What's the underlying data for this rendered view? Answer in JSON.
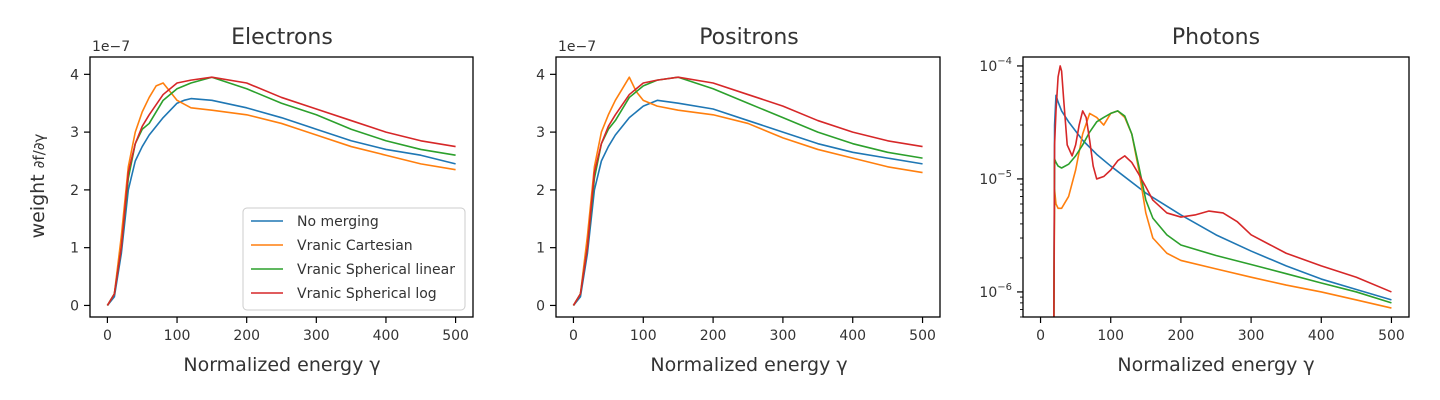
{
  "colors": {
    "no_merging": "#1f77b4",
    "vranic_cartesian": "#ff7f0e",
    "vranic_spherical_linear": "#2ca02c",
    "vranic_spherical_log": "#d62728"
  },
  "shared": {
    "xlabel": "Normalized energy γ",
    "ylabel_prefix": "weight",
    "ylabel_math": "∂f/∂γ"
  },
  "chart_data": [
    {
      "type": "line",
      "title": "Electrons",
      "xlabel": "Normalized energy γ",
      "ylabel": "weight ∂f/∂γ",
      "yscale": "linear",
      "y_multiplier": "1e−7",
      "xlim": [
        -25,
        525
      ],
      "ylim": [
        -0.2,
        4.3
      ],
      "xticks": [
        0,
        100,
        200,
        300,
        400,
        500
      ],
      "yticks": [
        0,
        1,
        2,
        3,
        4
      ],
      "legend": {
        "placement": "lower-right",
        "entries": [
          "No merging",
          "Vranic Cartesian",
          "Vranic Spherical linear",
          "Vranic Spherical log"
        ]
      },
      "series": [
        {
          "name": "No merging",
          "x": [
            0,
            10,
            20,
            30,
            40,
            50,
            60,
            80,
            100,
            110,
            120,
            150,
            200,
            250,
            300,
            350,
            400,
            450,
            500
          ],
          "y": [
            0,
            0.15,
            0.9,
            2.0,
            2.5,
            2.75,
            2.95,
            3.25,
            3.5,
            3.55,
            3.58,
            3.55,
            3.42,
            3.25,
            3.05,
            2.85,
            2.7,
            2.6,
            2.45
          ]
        },
        {
          "name": "Vranic Cartesian",
          "x": [
            0,
            10,
            20,
            30,
            40,
            50,
            60,
            70,
            80,
            90,
            100,
            120,
            150,
            200,
            250,
            300,
            350,
            400,
            450,
            500
          ],
          "y": [
            0,
            0.2,
            1.2,
            2.4,
            3.0,
            3.35,
            3.6,
            3.8,
            3.85,
            3.7,
            3.55,
            3.42,
            3.38,
            3.3,
            3.15,
            2.95,
            2.75,
            2.6,
            2.45,
            2.35
          ]
        },
        {
          "name": "Vranic Spherical linear",
          "x": [
            0,
            10,
            20,
            30,
            40,
            50,
            60,
            80,
            100,
            120,
            150,
            200,
            250,
            300,
            350,
            400,
            450,
            500
          ],
          "y": [
            0,
            0.2,
            1.0,
            2.2,
            2.8,
            3.05,
            3.15,
            3.55,
            3.75,
            3.85,
            3.95,
            3.75,
            3.5,
            3.3,
            3.05,
            2.85,
            2.7,
            2.6
          ]
        },
        {
          "name": "Vranic Spherical log",
          "x": [
            0,
            10,
            20,
            30,
            40,
            50,
            60,
            80,
            100,
            120,
            150,
            200,
            250,
            300,
            350,
            400,
            450,
            500
          ],
          "y": [
            0,
            0.2,
            1.0,
            2.3,
            2.8,
            3.1,
            3.3,
            3.65,
            3.85,
            3.9,
            3.95,
            3.85,
            3.6,
            3.4,
            3.2,
            3.0,
            2.85,
            2.75
          ]
        }
      ]
    },
    {
      "type": "line",
      "title": "Positrons",
      "xlabel": "Normalized energy γ",
      "yscale": "linear",
      "y_multiplier": "1e−7",
      "xlim": [
        -25,
        525
      ],
      "ylim": [
        -0.2,
        4.3
      ],
      "xticks": [
        0,
        100,
        200,
        300,
        400,
        500
      ],
      "yticks": [
        0,
        1,
        2,
        3,
        4
      ],
      "series": [
        {
          "name": "No merging",
          "x": [
            0,
            10,
            20,
            30,
            40,
            50,
            60,
            80,
            100,
            110,
            120,
            150,
            200,
            250,
            300,
            350,
            400,
            450,
            500
          ],
          "y": [
            0,
            0.15,
            0.9,
            2.0,
            2.5,
            2.75,
            2.95,
            3.25,
            3.45,
            3.5,
            3.55,
            3.5,
            3.4,
            3.2,
            3.0,
            2.8,
            2.65,
            2.55,
            2.45
          ]
        },
        {
          "name": "Vranic Cartesian",
          "x": [
            0,
            10,
            20,
            30,
            40,
            50,
            60,
            70,
            80,
            90,
            100,
            120,
            150,
            200,
            250,
            300,
            350,
            400,
            450,
            500
          ],
          "y": [
            0,
            0.2,
            1.2,
            2.4,
            3.0,
            3.3,
            3.55,
            3.75,
            3.95,
            3.7,
            3.55,
            3.45,
            3.38,
            3.3,
            3.15,
            2.9,
            2.7,
            2.55,
            2.4,
            2.3
          ]
        },
        {
          "name": "Vranic Spherical linear",
          "x": [
            0,
            10,
            20,
            30,
            40,
            50,
            60,
            80,
            100,
            120,
            150,
            200,
            250,
            300,
            350,
            400,
            450,
            500
          ],
          "y": [
            0,
            0.2,
            1.0,
            2.2,
            2.8,
            3.05,
            3.2,
            3.6,
            3.8,
            3.9,
            3.95,
            3.75,
            3.5,
            3.25,
            3.0,
            2.8,
            2.65,
            2.55
          ]
        },
        {
          "name": "Vranic Spherical log",
          "x": [
            0,
            10,
            20,
            30,
            40,
            50,
            60,
            80,
            100,
            120,
            150,
            200,
            250,
            300,
            350,
            400,
            450,
            500
          ],
          "y": [
            0,
            0.2,
            1.0,
            2.3,
            2.8,
            3.1,
            3.3,
            3.65,
            3.85,
            3.9,
            3.95,
            3.85,
            3.65,
            3.45,
            3.2,
            3.0,
            2.85,
            2.75
          ]
        }
      ]
    },
    {
      "type": "line",
      "title": "Photons",
      "xlabel": "Normalized energy γ",
      "yscale": "log",
      "xlim": [
        -25,
        525
      ],
      "ylim": [
        6e-07,
        0.00012
      ],
      "xticks": [
        0,
        100,
        200,
        300,
        400,
        500
      ],
      "yticks": [
        1e-06,
        1e-05,
        0.0001
      ],
      "ytick_labels": [
        "10−6",
        "10−5",
        "10−4"
      ],
      "series": [
        {
          "name": "No merging",
          "x": [
            19,
            20,
            22,
            25,
            30,
            40,
            60,
            80,
            100,
            150,
            200,
            250,
            300,
            350,
            400,
            450,
            500
          ],
          "y": [
            6e-07,
            3e-05,
            5.5e-05,
            4.8e-05,
            4e-05,
            3.2e-05,
            2.2e-05,
            1.65e-05,
            1.3e-05,
            7.5e-06,
            4.8e-06,
            3.2e-06,
            2.3e-06,
            1.7e-06,
            1.3e-06,
            1.05e-06,
            8.5e-07
          ]
        },
        {
          "name": "Vranic Cartesian",
          "x": [
            19,
            20,
            22,
            25,
            30,
            40,
            50,
            60,
            70,
            80,
            90,
            100,
            110,
            120,
            130,
            140,
            150,
            160,
            180,
            200,
            250,
            300,
            350,
            400,
            450,
            500
          ],
          "y": [
            6e-07,
            8e-06,
            6e-06,
            5.5e-06,
            5.5e-06,
            7e-06,
            1.2e-05,
            2.5e-05,
            3.8e-05,
            3.5e-05,
            3e-05,
            3.8e-05,
            4e-05,
            3.5e-05,
            2.5e-05,
            1.2e-05,
            5e-06,
            3e-06,
            2.2e-06,
            1.9e-06,
            1.6e-06,
            1.35e-06,
            1.15e-06,
            1e-06,
            8.5e-07,
            7.2e-07
          ]
        },
        {
          "name": "Vranic Spherical linear",
          "x": [
            19,
            20,
            22,
            25,
            30,
            40,
            50,
            60,
            70,
            80,
            90,
            100,
            110,
            120,
            130,
            140,
            150,
            160,
            180,
            200,
            250,
            300,
            350,
            400,
            450,
            500
          ],
          "y": [
            6e-07,
            1.5e-05,
            1.4e-05,
            1.3e-05,
            1.25e-05,
            1.35e-05,
            1.6e-05,
            2e-05,
            2.6e-05,
            3.2e-05,
            3.5e-05,
            3.8e-05,
            4e-05,
            3.6e-05,
            2.5e-05,
            1.3e-05,
            6.5e-06,
            4.5e-06,
            3.2e-06,
            2.6e-06,
            2.1e-06,
            1.75e-06,
            1.45e-06,
            1.2e-06,
            1e-06,
            8e-07
          ]
        },
        {
          "name": "Vranic Spherical log",
          "x": [
            19,
            20,
            22,
            25,
            28,
            30,
            33,
            38,
            45,
            50,
            55,
            60,
            65,
            70,
            75,
            80,
            90,
            100,
            110,
            120,
            130,
            140,
            150,
            160,
            180,
            200,
            220,
            240,
            260,
            280,
            300,
            350,
            400,
            450,
            500
          ],
          "y": [
            6e-07,
            2e-05,
            4e-05,
            8e-05,
            0.0001,
            9e-05,
            5e-05,
            2e-05,
            1.6e-05,
            2e-05,
            3e-05,
            4e-05,
            3.5e-05,
            2.2e-05,
            1.3e-05,
            1e-05,
            1.05e-05,
            1.2e-05,
            1.45e-05,
            1.6e-05,
            1.4e-05,
            1.1e-05,
            8.5e-06,
            6.5e-06,
            5e-06,
            4.6e-06,
            4.8e-06,
            5.2e-06,
            5e-06,
            4.2e-06,
            3.2e-06,
            2.2e-06,
            1.7e-06,
            1.35e-06,
            1e-06
          ]
        }
      ]
    }
  ]
}
